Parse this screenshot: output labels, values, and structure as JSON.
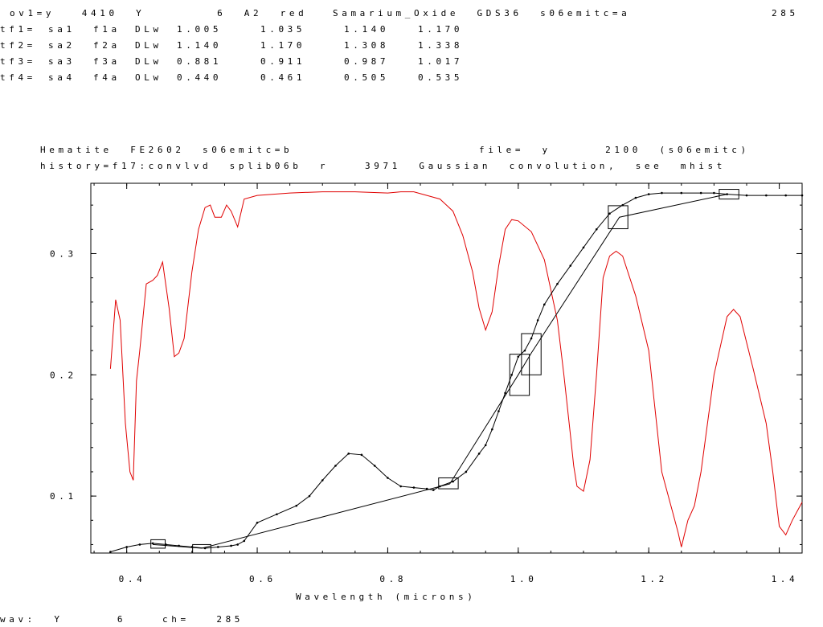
{
  "header": {
    "line1_left": "ov1=y   4410  Y        6  A2  red",
    "line1_mid": "Samarium_Oxide  GDS36  s06emitc=a",
    "line1_right": "285",
    "tf_rows": [
      {
        "name": "tf1=",
        "a": "sa1",
        "b": "f1a",
        "c": "DLw",
        "v1": "1.005",
        "v2": "1.035",
        "v3": "1.140",
        "v4": "1.170"
      },
      {
        "name": "tf2=",
        "a": "sa2",
        "b": "f2a",
        "c": "DLw",
        "v1": "1.140",
        "v2": "1.170",
        "v3": "1.308",
        "v4": "1.338"
      },
      {
        "name": "tf3=",
        "a": "sa3",
        "b": "f3a",
        "c": "DLw",
        "v1": "0.881",
        "v2": "0.911",
        "v3": "0.987",
        "v4": "1.017"
      },
      {
        "name": "tf4=",
        "a": "sa4",
        "b": "f4a",
        "c": "OLw",
        "v1": "0.440",
        "v2": "0.461",
        "v3": "0.505",
        "v4": "0.535"
      }
    ]
  },
  "plot_header": {
    "line1_left": "Hematite  FE2602  s06emitc=b",
    "line1_right": "file=  y      2100  (s06emitc)",
    "line2": "history=f17:convlvd  splib06b  r    3971  Gaussian  convolution,  see  mhist"
  },
  "footer": {
    "text": "wav:  Y      6    ch=   285"
  },
  "colors": {
    "red_series": "#e00000",
    "black_series": "#000000"
  },
  "chart_data": {
    "type": "line",
    "xlabel": "Wavelength  (microns)",
    "ylabel": "",
    "xlim": [
      0.345,
      1.435
    ],
    "ylim": [
      0.053,
      0.358
    ],
    "x_ticks": [
      0.4,
      0.6,
      0.8,
      1.0,
      1.2,
      1.4
    ],
    "x_tick_labels": [
      "0.4",
      "0.6",
      "0.8",
      "1.0",
      "1.2",
      "1.4"
    ],
    "y_ticks": [
      0.1,
      0.2,
      0.3
    ],
    "y_tick_labels": [
      "0.1",
      "0.2",
      "0.3"
    ],
    "series": [
      {
        "color": "#e00000",
        "x": [
          0.375,
          0.383,
          0.39,
          0.398,
          0.405,
          0.41,
          0.415,
          0.42,
          0.43,
          0.44,
          0.447,
          0.455,
          0.465,
          0.473,
          0.48,
          0.488,
          0.5,
          0.51,
          0.52,
          0.528,
          0.535,
          0.545,
          0.553,
          0.56,
          0.57,
          0.58,
          0.6,
          0.65,
          0.7,
          0.75,
          0.8,
          0.82,
          0.84,
          0.86,
          0.88,
          0.9,
          0.915,
          0.93,
          0.94,
          0.95,
          0.96,
          0.97,
          0.98,
          0.99,
          1.0,
          1.02,
          1.04,
          1.06,
          1.07,
          1.08,
          1.085,
          1.09,
          1.1,
          1.11,
          1.12,
          1.13,
          1.14,
          1.15,
          1.16,
          1.18,
          1.2,
          1.22,
          1.235,
          1.245,
          1.25,
          1.26,
          1.27,
          1.28,
          1.29,
          1.3,
          1.32,
          1.33,
          1.34,
          1.36,
          1.38,
          1.39,
          1.4,
          1.41,
          1.42,
          1.435
        ],
        "y": [
          0.205,
          0.262,
          0.245,
          0.16,
          0.12,
          0.113,
          0.195,
          0.22,
          0.275,
          0.278,
          0.282,
          0.293,
          0.255,
          0.215,
          0.218,
          0.23,
          0.285,
          0.32,
          0.338,
          0.34,
          0.33,
          0.33,
          0.34,
          0.335,
          0.322,
          0.345,
          0.348,
          0.35,
          0.351,
          0.351,
          0.35,
          0.351,
          0.351,
          0.348,
          0.345,
          0.335,
          0.315,
          0.285,
          0.255,
          0.237,
          0.252,
          0.29,
          0.32,
          0.328,
          0.327,
          0.318,
          0.295,
          0.245,
          0.2,
          0.15,
          0.125,
          0.108,
          0.104,
          0.13,
          0.2,
          0.28,
          0.298,
          0.302,
          0.298,
          0.265,
          0.22,
          0.12,
          0.09,
          0.07,
          0.058,
          0.08,
          0.092,
          0.12,
          0.16,
          0.2,
          0.248,
          0.254,
          0.248,
          0.205,
          0.16,
          0.12,
          0.075,
          0.068,
          0.08,
          0.095
        ]
      },
      {
        "color": "#000000",
        "x": [
          0.375,
          0.4,
          0.42,
          0.44,
          0.46,
          0.48,
          0.5,
          0.52,
          0.54,
          0.56,
          0.57,
          0.58,
          0.6,
          0.63,
          0.66,
          0.68,
          0.7,
          0.72,
          0.74,
          0.76,
          0.78,
          0.8,
          0.82,
          0.84,
          0.86,
          0.87,
          0.88,
          0.9,
          0.92,
          0.94,
          0.95,
          0.96,
          0.97,
          0.98,
          0.99,
          1.0,
          1.01,
          1.02,
          1.03,
          1.04,
          1.06,
          1.08,
          1.1,
          1.12,
          1.14,
          1.16,
          1.18,
          1.2,
          1.22,
          1.25,
          1.28,
          1.3,
          1.32,
          1.35,
          1.38,
          1.41,
          1.435
        ],
        "y": [
          0.054,
          0.058,
          0.06,
          0.061,
          0.06,
          0.059,
          0.058,
          0.057,
          0.058,
          0.059,
          0.06,
          0.063,
          0.078,
          0.085,
          0.092,
          0.1,
          0.113,
          0.125,
          0.135,
          0.134,
          0.125,
          0.115,
          0.108,
          0.107,
          0.106,
          0.105,
          0.108,
          0.112,
          0.12,
          0.135,
          0.142,
          0.155,
          0.17,
          0.185,
          0.2,
          0.215,
          0.22,
          0.23,
          0.245,
          0.258,
          0.275,
          0.29,
          0.305,
          0.32,
          0.333,
          0.34,
          0.346,
          0.349,
          0.35,
          0.35,
          0.35,
          0.35,
          0.349,
          0.348,
          0.348,
          0.348,
          0.348
        ]
      },
      {
        "color": "#000000",
        "x": [
          0.44,
          0.515,
          0.895,
          1.0,
          1.02,
          1.155,
          1.32
        ],
        "y": [
          0.06,
          0.057,
          0.11,
          0.2,
          0.218,
          0.33,
          0.349
        ]
      }
    ],
    "boxes": [
      {
        "x": 0.448,
        "y": 0.0605,
        "w": 0.022,
        "h": 0.007
      },
      {
        "x": 0.515,
        "y": 0.0565,
        "w": 0.028,
        "h": 0.007
      },
      {
        "x": 0.893,
        "y": 0.1105,
        "w": 0.03,
        "h": 0.009
      },
      {
        "x": 1.002,
        "y": 0.2,
        "w": 0.03,
        "h": 0.034
      },
      {
        "x": 1.02,
        "y": 0.217,
        "w": 0.03,
        "h": 0.034
      },
      {
        "x": 1.153,
        "y": 0.33,
        "w": 0.03,
        "h": 0.019
      },
      {
        "x": 1.323,
        "y": 0.349,
        "w": 0.03,
        "h": 0.008
      }
    ]
  }
}
